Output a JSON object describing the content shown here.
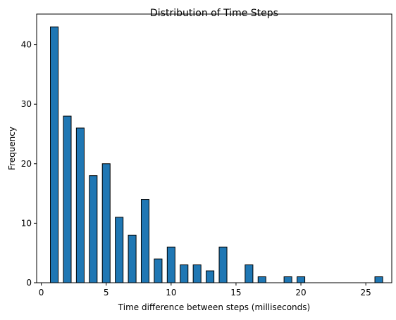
{
  "chart_data": {
    "type": "bar",
    "title": "Distribution of Time Steps",
    "xlabel": "Time difference between steps (milliseconds)",
    "ylabel": "Frequency",
    "xlim": [
      -0.36,
      27.0
    ],
    "ylim": [
      0,
      45.15
    ],
    "x_ticks": [
      0,
      5,
      10,
      15,
      20,
      25
    ],
    "y_ticks": [
      0,
      10,
      20,
      30,
      40
    ],
    "bar_width": 0.6,
    "bar_color": "#1f77b4",
    "edge_color": "#000000",
    "grid": false,
    "legend": false,
    "x": [
      1,
      2,
      3,
      4,
      5,
      6,
      7,
      8,
      9,
      10,
      11,
      12,
      13,
      14,
      16,
      17,
      19,
      20,
      26
    ],
    "values": [
      43,
      28,
      26,
      18,
      20,
      11,
      8,
      14,
      4,
      6,
      3,
      3,
      2,
      6,
      3,
      1,
      1,
      1,
      1
    ]
  }
}
